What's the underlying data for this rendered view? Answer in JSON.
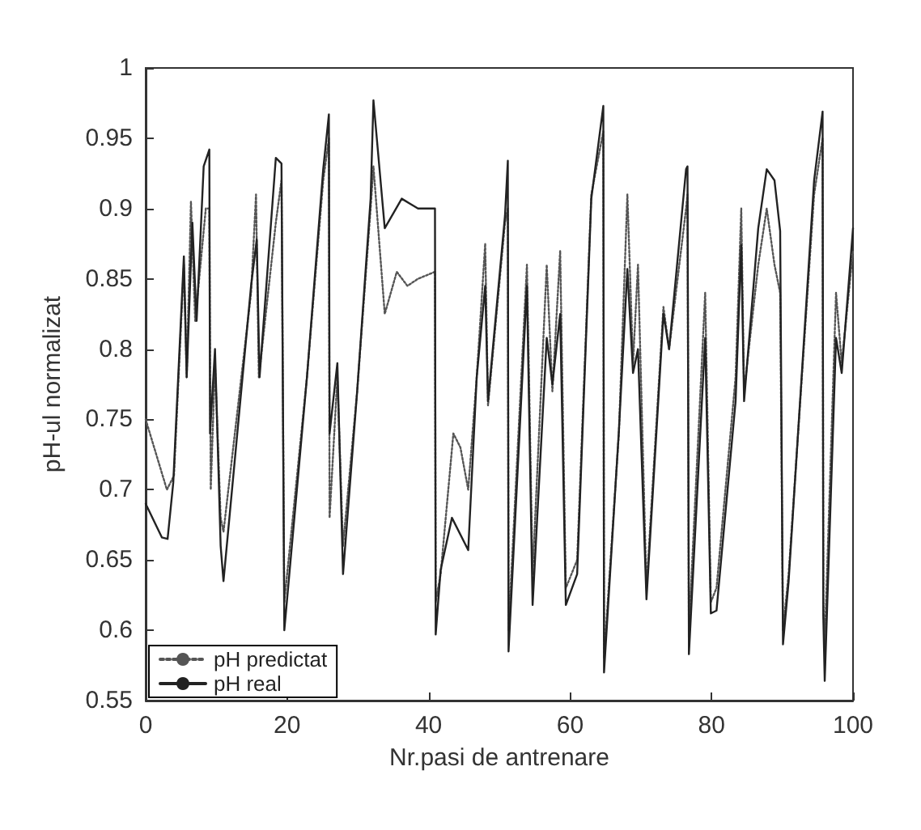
{
  "chart_data": {
    "type": "line",
    "xlabel": "Nr.pasi de antrenare",
    "ylabel": "pH-ul normalizat",
    "xlim": [
      0,
      100
    ],
    "ylim": [
      0.55,
      1
    ],
    "xticks": [
      0,
      20,
      40,
      60,
      80,
      100
    ],
    "yticks": [
      0.55,
      0.6,
      0.65,
      0.7,
      0.75,
      0.8,
      0.85,
      0.9,
      0.95,
      1
    ],
    "grid": false,
    "legend": "bottom left",
    "marker": "none",
    "series": [
      {
        "name": "pH predictat",
        "color": "#555555",
        "line_style": "dotted",
        "x": [
          0,
          3,
          4,
          5.4,
          5.8,
          6.4,
          7,
          8.5,
          9,
          9.2,
          9.8,
          10.6,
          11,
          14.9,
          15.6,
          16,
          18.4,
          19.2,
          19.6,
          22.8,
          25.1,
          25.9,
          26,
          27.1,
          27.9,
          29.9,
          31.8,
          32.2,
          33.8,
          35.5,
          37,
          38.5,
          40.9,
          41,
          41.7,
          43.5,
          44.5,
          45.6,
          46.8,
          48,
          48.4,
          50.8,
          51.2,
          51.3,
          53.9,
          54.7,
          56.7,
          57.5,
          58.6,
          59.4,
          61,
          63,
          64.7,
          64.8,
          66.9,
          68.1,
          68.9,
          69.6,
          70.8,
          73.2,
          74,
          76.4,
          76.6,
          76.8,
          79.1,
          79.9,
          80.7,
          83.4,
          84.2,
          84.6,
          86.6,
          87.8,
          88.9,
          89.7,
          90.1,
          90.9,
          94.5,
          95.7,
          95.8,
          96,
          97.6,
          98.4,
          100
        ],
        "values": [
          0.75,
          0.7,
          0.71,
          0.86,
          0.78,
          0.905,
          0.82,
          0.9,
          0.9,
          0.7,
          0.79,
          0.68,
          0.67,
          0.84,
          0.91,
          0.78,
          0.89,
          0.92,
          0.62,
          0.78,
          0.92,
          0.95,
          0.68,
          0.78,
          0.66,
          0.77,
          0.9,
          0.93,
          0.825,
          0.855,
          0.845,
          0.85,
          0.855,
          0.62,
          0.64,
          0.74,
          0.73,
          0.7,
          0.78,
          0.875,
          0.76,
          0.89,
          0.9,
          0.6,
          0.86,
          0.64,
          0.86,
          0.77,
          0.87,
          0.63,
          0.65,
          0.91,
          0.955,
          0.58,
          0.74,
          0.91,
          0.79,
          0.86,
          0.63,
          0.83,
          0.8,
          0.9,
          0.91,
          0.6,
          0.84,
          0.62,
          0.63,
          0.78,
          0.9,
          0.77,
          0.86,
          0.9,
          0.86,
          0.84,
          0.6,
          0.64,
          0.91,
          0.95,
          0.62,
          0.59,
          0.84,
          0.79,
          0.87
        ]
      },
      {
        "name": "pH real",
        "color": "#222222",
        "line_style": "solid",
        "x": [
          0,
          2.3,
          3.1,
          3.9,
          5.4,
          5.8,
          6.6,
          7.2,
          8.2,
          9,
          9.1,
          9.8,
          10.6,
          11,
          14.9,
          15.7,
          16.1,
          18.4,
          19.2,
          19.6,
          22.8,
          25.1,
          25.9,
          26,
          27.1,
          27.9,
          29.9,
          31.8,
          32.2,
          33.8,
          36.2,
          38.5,
          40.9,
          41,
          41.7,
          43.3,
          45.6,
          46.8,
          48,
          48.4,
          50.8,
          51.2,
          51.3,
          53.9,
          54.7,
          56.7,
          57.5,
          58.6,
          59.4,
          61,
          63,
          64.7,
          64.8,
          66.9,
          68.1,
          68.9,
          69.6,
          70.8,
          73.2,
          74,
          76.4,
          76.6,
          76.8,
          79.1,
          79.9,
          80.7,
          83.4,
          84.2,
          84.6,
          86.6,
          87.8,
          88.9,
          89.7,
          90.1,
          90.9,
          94.5,
          95.7,
          95.8,
          96,
          97.6,
          98.4,
          100
        ],
        "values": [
          0.69,
          0.666,
          0.665,
          0.705,
          0.866,
          0.78,
          0.89,
          0.82,
          0.93,
          0.942,
          0.74,
          0.8,
          0.66,
          0.635,
          0.845,
          0.878,
          0.78,
          0.936,
          0.932,
          0.6,
          0.78,
          0.928,
          0.967,
          0.74,
          0.79,
          0.64,
          0.77,
          0.907,
          0.977,
          0.886,
          0.907,
          0.9,
          0.9,
          0.597,
          0.643,
          0.68,
          0.657,
          0.78,
          0.845,
          0.763,
          0.895,
          0.934,
          0.585,
          0.845,
          0.618,
          0.808,
          0.775,
          0.825,
          0.618,
          0.64,
          0.907,
          0.973,
          0.57,
          0.742,
          0.857,
          0.783,
          0.8,
          0.622,
          0.825,
          0.8,
          0.928,
          0.93,
          0.583,
          0.808,
          0.612,
          0.614,
          0.763,
          0.874,
          0.763,
          0.886,
          0.928,
          0.92,
          0.884,
          0.59,
          0.635,
          0.92,
          0.969,
          0.61,
          0.564,
          0.808,
          0.783,
          0.886
        ]
      }
    ]
  }
}
